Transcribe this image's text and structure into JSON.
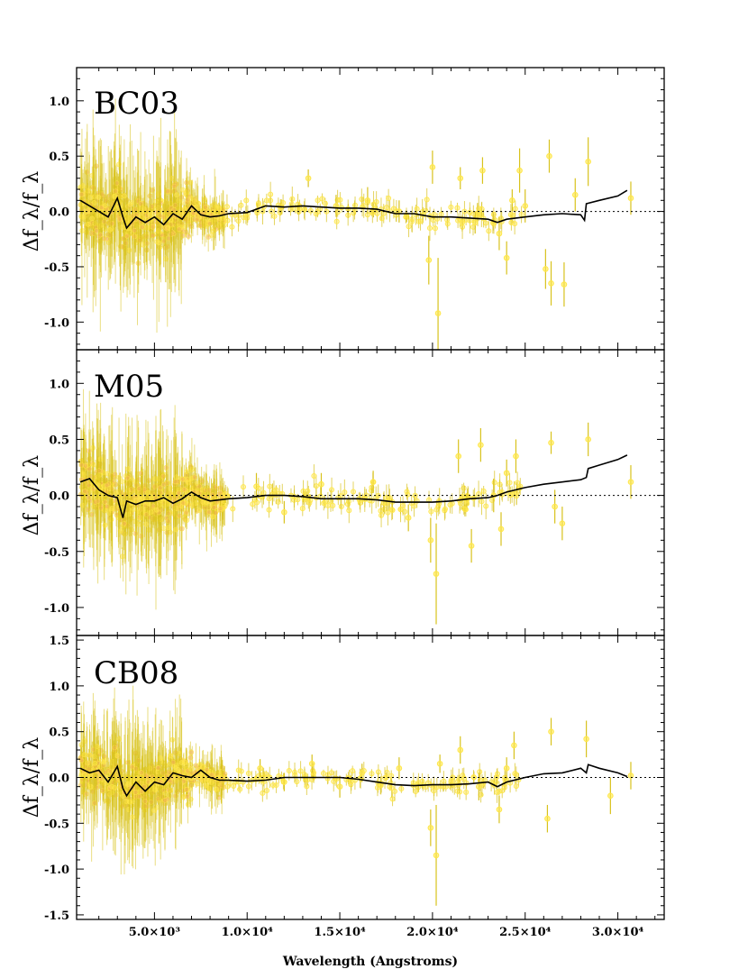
{
  "chart_data": [
    {
      "type": "scatter",
      "panel_label": "BC03",
      "ylabel": "Δf_λ/f_λ",
      "xlabel": "",
      "xlim": [
        800,
        32500
      ],
      "ylim": [
        -1.25,
        1.3
      ],
      "yticks": [
        {
          "v": 1.0,
          "label": "1.0"
        },
        {
          "v": 0.5,
          "label": "0.5"
        },
        {
          "v": 0.0,
          "label": "0.0"
        },
        {
          "v": -0.5,
          "label": "-0.5"
        },
        {
          "v": -1.0,
          "label": "-1.0"
        }
      ],
      "xticks": [
        {
          "v": 5000,
          "label": ""
        },
        {
          "v": 10000,
          "label": ""
        },
        {
          "v": 15000,
          "label": ""
        },
        {
          "v": 20000,
          "label": ""
        },
        {
          "v": 25000,
          "label": ""
        },
        {
          "v": 30000,
          "label": ""
        }
      ],
      "zero_line": true,
      "colors": {
        "points": "#ffe74a",
        "errorbars": "#d8c21c",
        "dense_glow": "#f5b45a",
        "model_line": "#000000"
      },
      "residual_curve": {
        "x": [
          1000,
          1500,
          2000,
          2500,
          3000,
          3300,
          3500,
          4000,
          4500,
          5000,
          5500,
          6000,
          6500,
          7000,
          7500,
          8000,
          8500,
          9000,
          10000,
          11000,
          12000,
          13000,
          14000,
          15000,
          16000,
          17000,
          18000,
          19000,
          20000,
          21000,
          22000,
          23000,
          23500,
          24000,
          25000,
          26000,
          27000,
          28000,
          28200,
          28300,
          29000,
          30000,
          30500
        ],
        "y": [
          0.1,
          0.05,
          0.0,
          -0.05,
          0.12,
          -0.05,
          -0.15,
          -0.05,
          -0.1,
          -0.05,
          -0.12,
          -0.02,
          -0.07,
          0.05,
          -0.03,
          -0.05,
          -0.04,
          -0.02,
          -0.01,
          0.05,
          0.04,
          0.05,
          0.04,
          0.03,
          0.03,
          0.02,
          -0.02,
          -0.02,
          -0.05,
          -0.05,
          -0.06,
          -0.07,
          -0.1,
          -0.07,
          -0.05,
          -0.03,
          -0.02,
          -0.03,
          -0.08,
          0.07,
          0.1,
          0.14,
          0.19
        ]
      },
      "sparse_points": [
        {
          "x": 13300,
          "y": 0.3,
          "err": 0.08
        },
        {
          "x": 14800,
          "y": 0.05,
          "err": 0.1
        },
        {
          "x": 16500,
          "y": 0.1,
          "err": 0.12
        },
        {
          "x": 18200,
          "y": 0.0,
          "err": 0.1
        },
        {
          "x": 19800,
          "y": -0.44,
          "err": 0.22
        },
        {
          "x": 20000,
          "y": 0.4,
          "err": 0.15
        },
        {
          "x": 20300,
          "y": -0.92,
          "err": 0.5
        },
        {
          "x": 21500,
          "y": 0.3,
          "err": 0.1
        },
        {
          "x": 22300,
          "y": -0.1,
          "err": 0.1
        },
        {
          "x": 22700,
          "y": 0.37,
          "err": 0.12
        },
        {
          "x": 23600,
          "y": -0.2,
          "err": 0.15
        },
        {
          "x": 24000,
          "y": -0.42,
          "err": 0.15
        },
        {
          "x": 24300,
          "y": 0.1,
          "err": 0.1
        },
        {
          "x": 24700,
          "y": 0.37,
          "err": 0.2
        },
        {
          "x": 25000,
          "y": 0.05,
          "err": 0.15
        },
        {
          "x": 26100,
          "y": -0.52,
          "err": 0.18
        },
        {
          "x": 26300,
          "y": 0.5,
          "err": 0.15
        },
        {
          "x": 26400,
          "y": -0.65,
          "err": 0.2
        },
        {
          "x": 27100,
          "y": -0.66,
          "err": 0.2
        },
        {
          "x": 27700,
          "y": 0.15,
          "err": 0.15
        },
        {
          "x": 28400,
          "y": 0.45,
          "err": 0.22
        },
        {
          "x": 30700,
          "y": 0.12,
          "err": 0.15
        }
      ]
    },
    {
      "type": "scatter",
      "panel_label": "M05",
      "ylabel": "Δf_λ/f_λ",
      "xlabel": "",
      "xlim": [
        800,
        32500
      ],
      "ylim": [
        -1.25,
        1.3
      ],
      "yticks": [
        {
          "v": 1.0,
          "label": "1.0"
        },
        {
          "v": 0.5,
          "label": "0.5"
        },
        {
          "v": 0.0,
          "label": "0.0"
        },
        {
          "v": -0.5,
          "label": "-0.5"
        },
        {
          "v": -1.0,
          "label": "-1.0"
        }
      ],
      "xticks": [
        {
          "v": 5000,
          "label": ""
        },
        {
          "v": 10000,
          "label": ""
        },
        {
          "v": 15000,
          "label": ""
        },
        {
          "v": 20000,
          "label": ""
        },
        {
          "v": 25000,
          "label": ""
        },
        {
          "v": 30000,
          "label": ""
        }
      ],
      "zero_line": true,
      "colors": {
        "points": "#ffe74a",
        "errorbars": "#d8c21c",
        "dense_glow": "#f5b45a",
        "model_line": "#000000"
      },
      "residual_curve": {
        "x": [
          1000,
          1500,
          2000,
          2500,
          3000,
          3300,
          3500,
          4000,
          4500,
          5000,
          5500,
          6000,
          6500,
          7000,
          7500,
          8000,
          8500,
          9000,
          10000,
          11000,
          12000,
          13000,
          14000,
          15000,
          16000,
          17000,
          18000,
          19000,
          20000,
          21000,
          22000,
          23000,
          23500,
          24000,
          25000,
          26000,
          27000,
          28000,
          28300,
          28400,
          29000,
          30000,
          30500
        ],
        "y": [
          0.12,
          0.15,
          0.05,
          0.0,
          -0.02,
          -0.2,
          -0.05,
          -0.08,
          -0.05,
          -0.05,
          -0.02,
          -0.07,
          -0.03,
          0.03,
          -0.02,
          -0.05,
          -0.04,
          -0.03,
          -0.02,
          0.0,
          0.0,
          -0.01,
          -0.03,
          -0.03,
          -0.03,
          -0.04,
          -0.06,
          -0.06,
          -0.06,
          -0.05,
          -0.03,
          -0.02,
          0.0,
          0.03,
          0.07,
          0.1,
          0.12,
          0.14,
          0.16,
          0.24,
          0.27,
          0.32,
          0.36
        ]
      },
      "sparse_points": [
        {
          "x": 10500,
          "y": 0.08,
          "err": 0.12
        },
        {
          "x": 12000,
          "y": -0.15,
          "err": 0.1
        },
        {
          "x": 14000,
          "y": 0.1,
          "err": 0.1
        },
        {
          "x": 16800,
          "y": 0.12,
          "err": 0.1
        },
        {
          "x": 18700,
          "y": -0.2,
          "err": 0.12
        },
        {
          "x": 19900,
          "y": -0.4,
          "err": 0.2
        },
        {
          "x": 20200,
          "y": -0.7,
          "err": 0.45
        },
        {
          "x": 21400,
          "y": 0.35,
          "err": 0.15
        },
        {
          "x": 22100,
          "y": -0.45,
          "err": 0.15
        },
        {
          "x": 22600,
          "y": 0.45,
          "err": 0.15
        },
        {
          "x": 23300,
          "y": 0.0,
          "err": 0.15
        },
        {
          "x": 23700,
          "y": -0.3,
          "err": 0.15
        },
        {
          "x": 24000,
          "y": 0.2,
          "err": 0.12
        },
        {
          "x": 24500,
          "y": 0.35,
          "err": 0.15
        },
        {
          "x": 26400,
          "y": 0.47,
          "err": 0.1
        },
        {
          "x": 26600,
          "y": -0.1,
          "err": 0.15
        },
        {
          "x": 27000,
          "y": -0.25,
          "err": 0.15
        },
        {
          "x": 28400,
          "y": 0.5,
          "err": 0.15
        },
        {
          "x": 30700,
          "y": 0.12,
          "err": 0.15
        }
      ]
    },
    {
      "type": "scatter",
      "panel_label": "CB08",
      "ylabel": "Δf_λ/f_λ",
      "xlabel": "Wavelength (Angstroms)",
      "xlim": [
        800,
        32500
      ],
      "ylim": [
        -1.55,
        1.55
      ],
      "yticks": [
        {
          "v": 1.5,
          "label": "1.5"
        },
        {
          "v": 1.0,
          "label": "1.0"
        },
        {
          "v": 0.5,
          "label": "0.5"
        },
        {
          "v": 0.0,
          "label": "0.0"
        },
        {
          "v": -0.5,
          "label": "-0.5"
        },
        {
          "v": -1.0,
          "label": "-1.0"
        },
        {
          "v": -1.5,
          "label": "-1.5"
        }
      ],
      "xticks": [
        {
          "v": 5000,
          "label": "5.0×10³"
        },
        {
          "v": 10000,
          "label": "1.0×10⁴"
        },
        {
          "v": 15000,
          "label": "1.5×10⁴"
        },
        {
          "v": 20000,
          "label": "2.0×10⁴"
        },
        {
          "v": 25000,
          "label": "2.5×10⁴"
        },
        {
          "v": 30000,
          "label": "3.0×10⁴"
        }
      ],
      "zero_line": true,
      "colors": {
        "points": "#ffe74a",
        "errorbars": "#d8c21c",
        "dense_glow": "#f5b45a",
        "model_line": "#000000"
      },
      "residual_curve": {
        "x": [
          1000,
          1500,
          2000,
          2500,
          3000,
          3300,
          3500,
          4000,
          4500,
          5000,
          5500,
          6000,
          6500,
          7000,
          7500,
          8000,
          8500,
          9000,
          10000,
          11000,
          12000,
          13000,
          14000,
          15000,
          16000,
          17000,
          18000,
          19000,
          20000,
          21000,
          22000,
          23000,
          23500,
          24000,
          25000,
          26000,
          27000,
          28000,
          28300,
          28400,
          29000,
          30000,
          30500
        ],
        "y": [
          0.1,
          0.05,
          0.08,
          -0.05,
          0.12,
          -0.12,
          -0.2,
          -0.05,
          -0.15,
          -0.05,
          -0.08,
          0.05,
          0.02,
          0.0,
          0.08,
          0.0,
          -0.03,
          -0.03,
          -0.04,
          -0.03,
          0.0,
          0.0,
          0.0,
          0.0,
          -0.02,
          -0.05,
          -0.08,
          -0.09,
          -0.08,
          -0.08,
          -0.07,
          -0.05,
          -0.1,
          -0.05,
          0.0,
          0.04,
          0.05,
          0.1,
          0.05,
          0.14,
          0.1,
          0.05,
          0.01
        ]
      },
      "sparse_points": [
        {
          "x": 10700,
          "y": 0.1,
          "err": 0.1
        },
        {
          "x": 12000,
          "y": -0.05,
          "err": 0.1
        },
        {
          "x": 13500,
          "y": 0.15,
          "err": 0.1
        },
        {
          "x": 15000,
          "y": -0.1,
          "err": 0.12
        },
        {
          "x": 16200,
          "y": 0.05,
          "err": 0.1
        },
        {
          "x": 18200,
          "y": 0.1,
          "err": 0.12
        },
        {
          "x": 19900,
          "y": -0.55,
          "err": 0.2
        },
        {
          "x": 20200,
          "y": -0.85,
          "err": 0.55
        },
        {
          "x": 20400,
          "y": 0.15,
          "err": 0.1
        },
        {
          "x": 21500,
          "y": 0.3,
          "err": 0.15
        },
        {
          "x": 22500,
          "y": -0.1,
          "err": 0.15
        },
        {
          "x": 23600,
          "y": -0.35,
          "err": 0.15
        },
        {
          "x": 24000,
          "y": 0.1,
          "err": 0.12
        },
        {
          "x": 24400,
          "y": 0.35,
          "err": 0.15
        },
        {
          "x": 26200,
          "y": -0.45,
          "err": 0.15
        },
        {
          "x": 26400,
          "y": 0.5,
          "err": 0.15
        },
        {
          "x": 28300,
          "y": 0.42,
          "err": 0.2
        },
        {
          "x": 29600,
          "y": -0.2,
          "err": 0.2
        },
        {
          "x": 30700,
          "y": 0.02,
          "err": 0.15
        }
      ]
    }
  ]
}
